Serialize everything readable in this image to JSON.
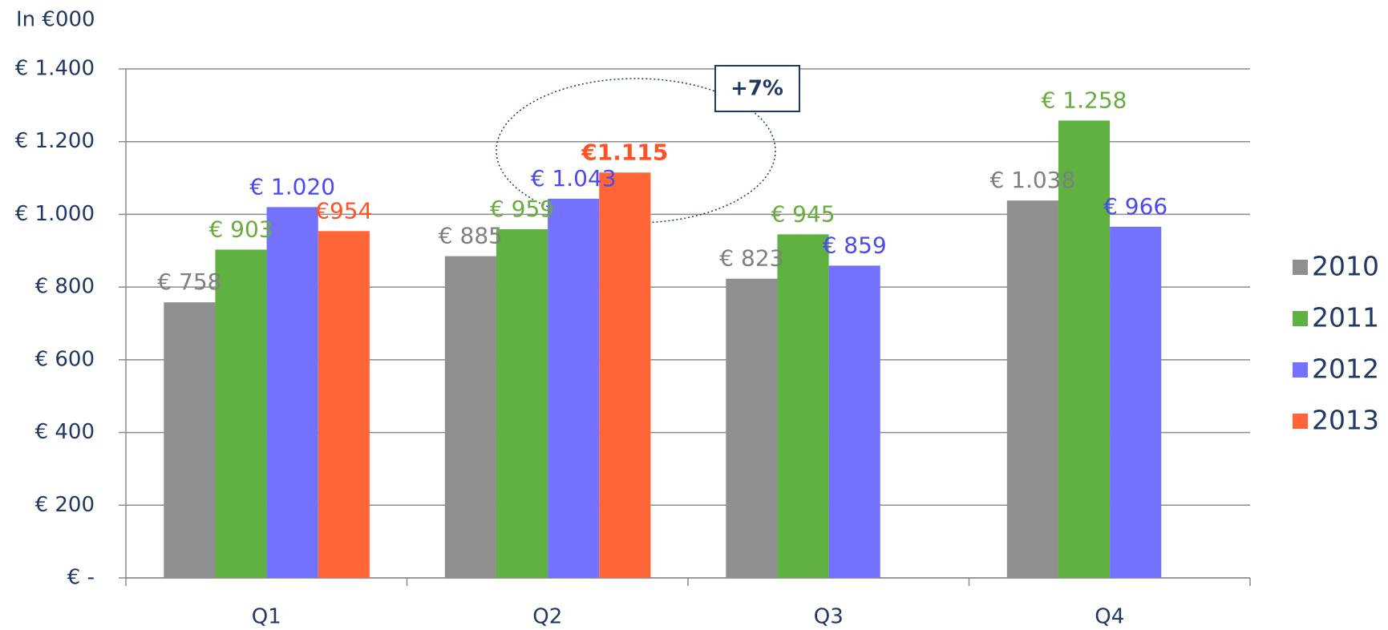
{
  "chart_data": {
    "type": "bar",
    "y_axis_label": "In €000",
    "annotation": "+7%",
    "categories": [
      "Q1",
      "Q2",
      "Q3",
      "Q4"
    ],
    "series": [
      {
        "name": "2010",
        "color": "#8f8f8f",
        "label_color": "#7f7f7f",
        "values": [
          758,
          885,
          823,
          1038
        ],
        "value_labels": [
          "€ 758",
          "€ 885",
          "€ 823",
          "€ 1.038"
        ]
      },
      {
        "name": "2011",
        "color": "#5fb241",
        "label_color": "#66ad3c",
        "values": [
          903,
          959,
          945,
          1258
        ],
        "value_labels": [
          "€ 903",
          "€ 959",
          "€ 945",
          "€ 1.258"
        ]
      },
      {
        "name": "2012",
        "color": "#7272ff",
        "label_color": "#4a4aef",
        "values": [
          1020,
          1043,
          859,
          966
        ],
        "value_labels": [
          "€ 1.020",
          "€ 1.043",
          "€ 859",
          "€ 966"
        ]
      },
      {
        "name": "2013",
        "color": "#ff6536",
        "label_color": "#ff5226",
        "values": [
          954,
          1115,
          null,
          null
        ],
        "value_labels": [
          "€954",
          "€1.115",
          null,
          null
        ]
      }
    ],
    "ylim": [
      0,
      1400
    ],
    "yticks": [
      {
        "value": 0,
        "label": "€ -"
      },
      {
        "value": 200,
        "label": "€ 200"
      },
      {
        "value": 400,
        "label": "€ 400"
      },
      {
        "value": 600,
        "label": "€ 600"
      },
      {
        "value": 800,
        "label": "€ 800"
      },
      {
        "value": 1000,
        "label": "€ 1.000"
      },
      {
        "value": 1200,
        "label": "€ 1.200"
      },
      {
        "value": 1400,
        "label": "€ 1.400"
      }
    ],
    "grid": true,
    "legend": "right"
  }
}
